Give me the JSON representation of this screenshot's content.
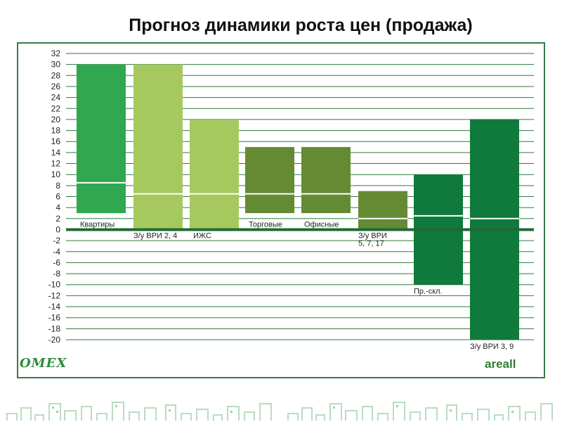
{
  "page": {
    "title": "Прогноз динамики роста цен (продажа)"
  },
  "brand": {
    "left_logo": "ОМЕХ",
    "right_logo": "areall"
  },
  "colors": {
    "bright_green": "#2fa84f",
    "light_green": "#a5c95f",
    "olive_green": "#658a34",
    "dark_green": "#0f7a3b",
    "axis": "#1e6b33",
    "grid": "#2e7a3f"
  },
  "chart_data": {
    "type": "bar",
    "title": "Прогноз динамики роста цен (продажа)",
    "xlabel": "",
    "ylabel": "",
    "ylim": [
      -20,
      32
    ],
    "yticks": [
      32,
      30,
      28,
      26,
      24,
      22,
      20,
      18,
      16,
      14,
      12,
      10,
      8,
      6,
      4,
      2,
      0,
      -2,
      -4,
      -6,
      -8,
      -10,
      -12,
      -14,
      -16,
      -18,
      -20
    ],
    "grid": true,
    "legend": "none",
    "categories": [
      "Квартиры",
      "З/у ВРИ 2, 4",
      "ИЖС",
      "Торговые",
      "Офисные",
      "З/у ВРИ 5, 7, 17",
      "Пр.-скл.",
      "З/у ВРИ 3, 9"
    ],
    "ranges": [
      {
        "category": "Квартиры",
        "low": 3,
        "high": 30,
        "mid": 8.5,
        "color": "#2fa84f"
      },
      {
        "category": "З/у ВРИ 2, 4",
        "low": 0,
        "high": 30,
        "mid": 6.5,
        "color": "#a5c95f"
      },
      {
        "category": "ИЖС",
        "low": 0,
        "high": 20,
        "mid": 6.5,
        "color": "#a5c95f"
      },
      {
        "category": "Торговые",
        "low": 3,
        "high": 15,
        "mid": 6.5,
        "color": "#658a34"
      },
      {
        "category": "Офисные",
        "low": 3,
        "high": 15,
        "mid": 6.5,
        "color": "#658a34"
      },
      {
        "category": "З/у ВРИ 5, 7, 17",
        "low": 0,
        "high": 7,
        "mid": 2,
        "color": "#658a34"
      },
      {
        "category": "Пр.-скл.",
        "low": -10,
        "high": 10,
        "mid": 2.5,
        "color": "#0f7a3b"
      },
      {
        "category": "З/у ВРИ 3, 9",
        "low": -20,
        "high": 20,
        "mid": 2,
        "color": "#0f7a3b"
      }
    ]
  }
}
